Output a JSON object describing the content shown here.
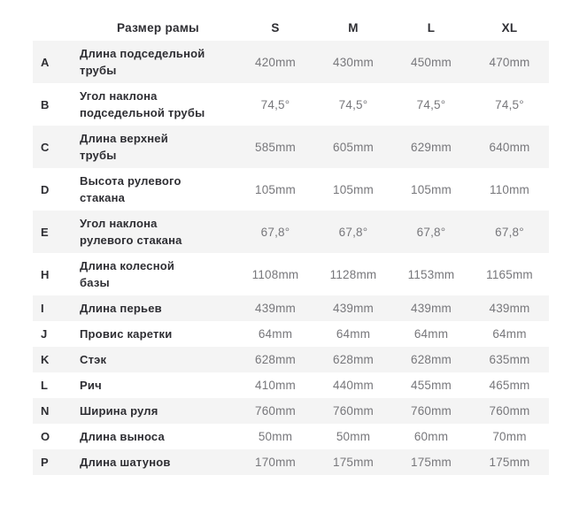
{
  "colors": {
    "stripe_background": "#f4f4f4",
    "heading_text": "#2e2e33",
    "value_text": "#77777b",
    "page_background": "#ffffff"
  },
  "chart_data": {
    "type": "table",
    "title": "Размер рамы",
    "columns": [
      "Размер рамы",
      "S",
      "M",
      "L",
      "XL"
    ],
    "rows": [
      {
        "letter": "A",
        "label": "Длина подседельной\nтрубы",
        "values": [
          "420mm",
          "430mm",
          "450mm",
          "470mm"
        ]
      },
      {
        "letter": "B",
        "label": "Угол наклона\nподседельной трубы",
        "values": [
          "74,5°",
          "74,5°",
          "74,5°",
          "74,5°"
        ]
      },
      {
        "letter": "C",
        "label": "Длина верхней\nтрубы",
        "values": [
          "585mm",
          "605mm",
          "629mm",
          "640mm"
        ]
      },
      {
        "letter": "D",
        "label": "Высота рулевого\nстакана",
        "values": [
          "105mm",
          "105mm",
          "105mm",
          "110mm"
        ]
      },
      {
        "letter": "E",
        "label": "Угол наклона\nрулевого стакана",
        "values": [
          "67,8°",
          "67,8°",
          "67,8°",
          "67,8°"
        ]
      },
      {
        "letter": "H",
        "label": "Длина колесной\nбазы",
        "values": [
          "1108mm",
          "1128mm",
          "1153mm",
          "1165mm"
        ]
      },
      {
        "letter": "I",
        "label": "Длина перьев",
        "values": [
          "439mm",
          "439mm",
          "439mm",
          "439mm"
        ]
      },
      {
        "letter": "J",
        "label": "Провис каретки",
        "values": [
          "64mm",
          "64mm",
          "64mm",
          "64mm"
        ]
      },
      {
        "letter": "K",
        "label": "Стэк",
        "values": [
          "628mm",
          "628mm",
          "628mm",
          "635mm"
        ]
      },
      {
        "letter": "L",
        "label": "Рич",
        "values": [
          "410mm",
          "440mm",
          "455mm",
          "465mm"
        ]
      },
      {
        "letter": "N",
        "label": "Ширина руля",
        "values": [
          "760mm",
          "760mm",
          "760mm",
          "760mm"
        ]
      },
      {
        "letter": "O",
        "label": "Длина выноса",
        "values": [
          "50mm",
          "50mm",
          "60mm",
          "70mm"
        ]
      },
      {
        "letter": "P",
        "label": "Длина шатунов",
        "values": [
          "170mm",
          "175mm",
          "175mm",
          "175mm"
        ]
      }
    ]
  }
}
